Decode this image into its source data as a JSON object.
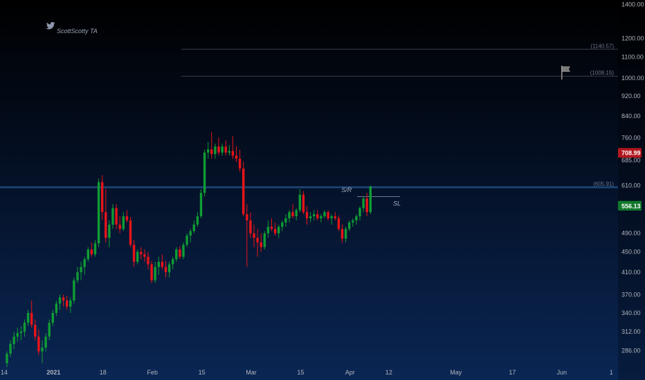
{
  "watermark": {
    "text": "ScottScotty TA",
    "icon": "twitter-bird-icon"
  },
  "chart_data": {
    "type": "candlestick",
    "scale": "log",
    "ylim": [
      268,
      1430
    ],
    "y_ticks": [
      "1400.00",
      "1200.00",
      "1100.00",
      "1000.00",
      "920.00",
      "840.00",
      "760.00",
      "685.00",
      "610.00",
      "490.00",
      "450.00",
      "410.00",
      "370.00",
      "340.00",
      "312.00",
      "286.00"
    ],
    "y_tick_values": [
      1400,
      1200,
      1100,
      1000,
      920,
      840,
      760,
      685,
      610,
      490,
      450,
      410,
      370,
      340,
      312,
      286
    ],
    "x_ticks": [
      {
        "label": "14",
        "index": 0
      },
      {
        "label": "2021",
        "index": 14,
        "bold": true
      },
      {
        "label": "18",
        "index": 28
      },
      {
        "label": "Feb",
        "index": 42
      },
      {
        "label": "15",
        "index": 56
      },
      {
        "label": "Mar",
        "index": 70
      },
      {
        "label": "15",
        "index": 84
      },
      {
        "label": "Apr",
        "index": 98
      },
      {
        "label": "12",
        "index": 109
      },
      {
        "label": "May",
        "index": 128
      },
      {
        "label": "17",
        "index": 144
      },
      {
        "label": "Jun",
        "index": 158
      },
      {
        "label": "1",
        "index": 172
      }
    ],
    "candles": [
      [
        270,
        285,
        265,
        282
      ],
      [
        282,
        300,
        278,
        295
      ],
      [
        295,
        312,
        288,
        305
      ],
      [
        305,
        318,
        298,
        310
      ],
      [
        310,
        320,
        300,
        312
      ],
      [
        312,
        330,
        305,
        325
      ],
      [
        325,
        345,
        320,
        340
      ],
      [
        340,
        360,
        318,
        322
      ],
      [
        322,
        330,
        300,
        305
      ],
      [
        305,
        315,
        280,
        285
      ],
      [
        285,
        300,
        270,
        290
      ],
      [
        290,
        310,
        285,
        305
      ],
      [
        305,
        330,
        300,
        325
      ],
      [
        325,
        345,
        320,
        340
      ],
      [
        340,
        360,
        335,
        355
      ],
      [
        355,
        370,
        345,
        365
      ],
      [
        365,
        370,
        350,
        360
      ],
      [
        360,
        368,
        345,
        350
      ],
      [
        350,
        365,
        340,
        360
      ],
      [
        360,
        400,
        355,
        395
      ],
      [
        395,
        420,
        390,
        410
      ],
      [
        410,
        430,
        395,
        420
      ],
      [
        420,
        440,
        405,
        435
      ],
      [
        435,
        460,
        430,
        455
      ],
      [
        455,
        470,
        440,
        445
      ],
      [
        445,
        475,
        440,
        468
      ],
      [
        468,
        630,
        460,
        620
      ],
      [
        620,
        640,
        520,
        540
      ],
      [
        540,
        600,
        470,
        480
      ],
      [
        480,
        520,
        460,
        510
      ],
      [
        510,
        560,
        500,
        550
      ],
      [
        550,
        560,
        500,
        510
      ],
      [
        510,
        530,
        490,
        500
      ],
      [
        500,
        540,
        495,
        530
      ],
      [
        530,
        545,
        515,
        520
      ],
      [
        520,
        528,
        460,
        465
      ],
      [
        465,
        475,
        420,
        430
      ],
      [
        430,
        455,
        425,
        450
      ],
      [
        450,
        460,
        435,
        445
      ],
      [
        445,
        455,
        430,
        440
      ],
      [
        440,
        450,
        415,
        425
      ],
      [
        425,
        432,
        390,
        395
      ],
      [
        395,
        430,
        390,
        420
      ],
      [
        420,
        440,
        405,
        430
      ],
      [
        430,
        445,
        415,
        420
      ],
      [
        420,
        432,
        400,
        410
      ],
      [
        410,
        430,
        400,
        425
      ],
      [
        425,
        440,
        415,
        435
      ],
      [
        435,
        460,
        430,
        455
      ],
      [
        455,
        462,
        435,
        440
      ],
      [
        440,
        470,
        435,
        465
      ],
      [
        465,
        490,
        460,
        485
      ],
      [
        485,
        500,
        470,
        495
      ],
      [
        495,
        520,
        490,
        510
      ],
      [
        510,
        540,
        505,
        530
      ],
      [
        530,
        600,
        525,
        590
      ],
      [
        590,
        720,
        580,
        710
      ],
      [
        710,
        745,
        690,
        720
      ],
      [
        720,
        780,
        690,
        705
      ],
      [
        705,
        740,
        690,
        730
      ],
      [
        730,
        760,
        700,
        710
      ],
      [
        710,
        740,
        700,
        730
      ],
      [
        730,
        750,
        700,
        710
      ],
      [
        710,
        735,
        700,
        715
      ],
      [
        715,
        765,
        690,
        700
      ],
      [
        700,
        730,
        680,
        690
      ],
      [
        690,
        720,
        650,
        660
      ],
      [
        660,
        680,
        530,
        535
      ],
      [
        535,
        560,
        420,
        520
      ],
      [
        520,
        540,
        480,
        490
      ],
      [
        490,
        510,
        460,
        480
      ],
      [
        480,
        500,
        440,
        470
      ],
      [
        470,
        490,
        450,
        460
      ],
      [
        460,
        495,
        455,
        490
      ],
      [
        490,
        520,
        480,
        505
      ],
      [
        505,
        525,
        495,
        500
      ],
      [
        500,
        515,
        485,
        490
      ],
      [
        490,
        510,
        480,
        505
      ],
      [
        505,
        520,
        495,
        515
      ],
      [
        515,
        535,
        505,
        525
      ],
      [
        525,
        545,
        515,
        540
      ],
      [
        540,
        560,
        525,
        530
      ],
      [
        530,
        550,
        520,
        545
      ],
      [
        545,
        600,
        540,
        585
      ],
      [
        585,
        595,
        535,
        540
      ],
      [
        540,
        555,
        510,
        525
      ],
      [
        525,
        540,
        515,
        530
      ],
      [
        530,
        545,
        520,
        535
      ],
      [
        535,
        545,
        520,
        525
      ],
      [
        525,
        535,
        515,
        530
      ],
      [
        530,
        545,
        525,
        540
      ],
      [
        540,
        545,
        520,
        525
      ],
      [
        525,
        535,
        510,
        530
      ],
      [
        530,
        540,
        520,
        525
      ],
      [
        525,
        532,
        495,
        500
      ],
      [
        500,
        510,
        470,
        478
      ],
      [
        478,
        505,
        470,
        500
      ],
      [
        500,
        520,
        495,
        515
      ],
      [
        515,
        525,
        505,
        520
      ],
      [
        520,
        535,
        510,
        530
      ],
      [
        530,
        555,
        520,
        550
      ],
      [
        550,
        580,
        540,
        575
      ],
      [
        575,
        590,
        530,
        540
      ],
      [
        540,
        610,
        535,
        608
      ]
    ],
    "levels": [
      {
        "label": "(1140.57)",
        "value": 1140.57
      },
      {
        "label": "(1008.15)",
        "value": 1008.15
      },
      {
        "label": "(605.91)",
        "value": 605.91
      }
    ],
    "sl_value": 580,
    "annotations": [
      {
        "text": "S/R",
        "index": 83
      },
      {
        "text": "SL",
        "index": 100
      }
    ],
    "price_tags": [
      {
        "text": "708.99",
        "value": 708.99,
        "color": "#b2161e"
      },
      {
        "text": "556.13",
        "value": 556.13,
        "color": "#12782a"
      }
    ],
    "colors": {
      "up": "#0f9d33",
      "down": "#e81418",
      "level": "#3a3e4a",
      "sr": "#1f4a7d"
    }
  }
}
